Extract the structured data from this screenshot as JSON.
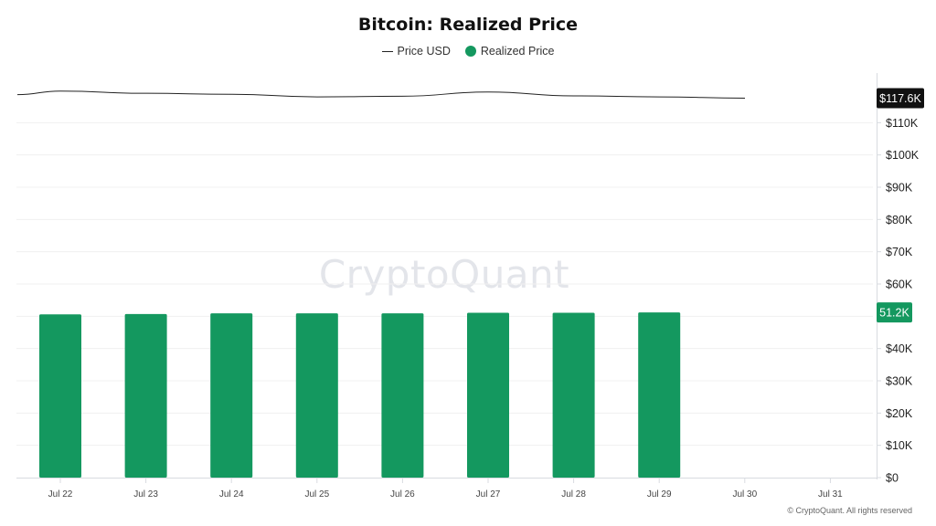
{
  "title": "Bitcoin: Realized Price",
  "legend": {
    "price_label": "Price USD",
    "realized_label": "Realized Price"
  },
  "colors": {
    "bar": "#14985f",
    "line": "#222222",
    "price_badge": "#111111",
    "realized_badge": "#14985f",
    "grid": "#f0f0f0"
  },
  "watermark": "CryptoQuant",
  "copyright": "© CryptoQuant. All rights reserved",
  "chart_data": {
    "type": "bar",
    "title": "Bitcoin: Realized Price",
    "categories": [
      "Jul 22",
      "Jul 23",
      "Jul 24",
      "Jul 25",
      "Jul 26",
      "Jul 27",
      "Jul 28",
      "Jul 29",
      "Jul 30",
      "Jul 31"
    ],
    "series": [
      {
        "name": "Realized Price",
        "type": "bar",
        "values": [
          50600,
          50700,
          50900,
          50900,
          50900,
          51100,
          51100,
          51200,
          null,
          null
        ]
      },
      {
        "name": "Price USD",
        "type": "line",
        "x": [
          "Jul 21 12:00",
          "Jul 22",
          "Jul 23",
          "Jul 24",
          "Jul 25",
          "Jul 26",
          "Jul 27",
          "Jul 28",
          "Jul 29",
          "Jul 30"
        ],
        "values": [
          118700,
          119800,
          119100,
          118800,
          118000,
          118200,
          119500,
          118300,
          118000,
          117600
        ]
      }
    ],
    "yaxis": {
      "min": 0,
      "max": 120000,
      "ticks": [
        "$0",
        "$10K",
        "$20K",
        "$30K",
        "$40K",
        "$50K",
        "$60K",
        "$70K",
        "$80K",
        "$90K",
        "$100K",
        "$110K"
      ],
      "position": "right"
    },
    "last_values": {
      "price_label": "$117.6K",
      "realized_label": "51.2K"
    },
    "grid": true,
    "legend_position": "top-center"
  }
}
